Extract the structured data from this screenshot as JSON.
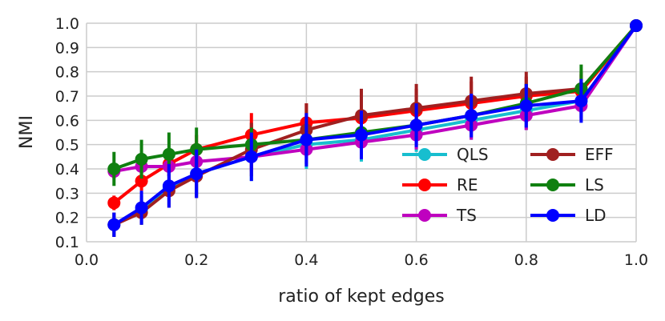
{
  "chart_data": {
    "type": "line",
    "title": "",
    "xlabel": "ratio of kept edges",
    "ylabel": "NMI",
    "xlim": [
      0.0,
      1.0
    ],
    "ylim": [
      0.1,
      1.0
    ],
    "xticks": [
      "0.0",
      "0.2",
      "0.4",
      "0.6",
      "0.8",
      "1.0"
    ],
    "yticks": [
      "0.1",
      "0.2",
      "0.3",
      "0.4",
      "0.5",
      "0.6",
      "0.7",
      "0.8",
      "0.9",
      "1.0"
    ],
    "grid": true,
    "legend_position": "lower-right",
    "x": [
      0.05,
      0.1,
      0.15,
      0.2,
      0.3,
      0.4,
      0.5,
      0.6,
      0.7,
      0.8,
      0.9,
      1.0
    ],
    "series": [
      {
        "name": "QLS",
        "color": "#17becf",
        "values": [
          0.17,
          0.23,
          0.32,
          0.38,
          0.45,
          0.5,
          0.52,
          0.56,
          0.6,
          0.64,
          0.68,
          0.99
        ],
        "errors": [
          0.05,
          0.06,
          0.07,
          0.09,
          0.1,
          0.1,
          0.09,
          0.09,
          0.08,
          0.08,
          0.07,
          0.0
        ]
      },
      {
        "name": "RE",
        "color": "#ff0000",
        "values": [
          0.26,
          0.35,
          0.42,
          0.48,
          0.54,
          0.59,
          0.61,
          0.64,
          0.67,
          0.7,
          0.72,
          0.99
        ],
        "errors": [
          0.03,
          0.04,
          0.05,
          0.06,
          0.09,
          0.08,
          0.09,
          0.09,
          0.09,
          0.08,
          0.07,
          0.0
        ]
      },
      {
        "name": "TS",
        "color": "#bf00bf",
        "values": [
          0.39,
          0.41,
          0.41,
          0.43,
          0.45,
          0.48,
          0.51,
          0.54,
          0.58,
          0.62,
          0.66,
          0.99
        ],
        "errors": [
          0.03,
          0.03,
          0.04,
          0.05,
          0.06,
          0.06,
          0.07,
          0.06,
          0.06,
          0.06,
          0.06,
          0.0
        ]
      },
      {
        "name": "EFF",
        "color": "#a02020",
        "values": [
          0.17,
          0.22,
          0.31,
          0.37,
          0.48,
          0.56,
          0.62,
          0.65,
          0.68,
          0.71,
          0.73,
          0.99
        ],
        "errors": [
          0.05,
          0.05,
          0.07,
          0.09,
          0.11,
          0.11,
          0.11,
          0.1,
          0.1,
          0.09,
          0.07,
          0.0
        ]
      },
      {
        "name": "LS",
        "color": "#108010",
        "values": [
          0.4,
          0.44,
          0.46,
          0.48,
          0.5,
          0.52,
          0.55,
          0.58,
          0.62,
          0.67,
          0.73,
          0.99
        ],
        "errors": [
          0.07,
          0.08,
          0.09,
          0.09,
          0.07,
          0.06,
          0.06,
          0.06,
          0.07,
          0.08,
          0.1,
          0.0
        ]
      },
      {
        "name": "LD",
        "color": "#0000ff",
        "values": [
          0.17,
          0.24,
          0.33,
          0.38,
          0.45,
          0.52,
          0.54,
          0.58,
          0.62,
          0.66,
          0.68,
          0.99
        ],
        "errors": [
          0.05,
          0.07,
          0.09,
          0.1,
          0.1,
          0.11,
          0.1,
          0.09,
          0.09,
          0.09,
          0.09,
          0.0
        ]
      }
    ]
  }
}
